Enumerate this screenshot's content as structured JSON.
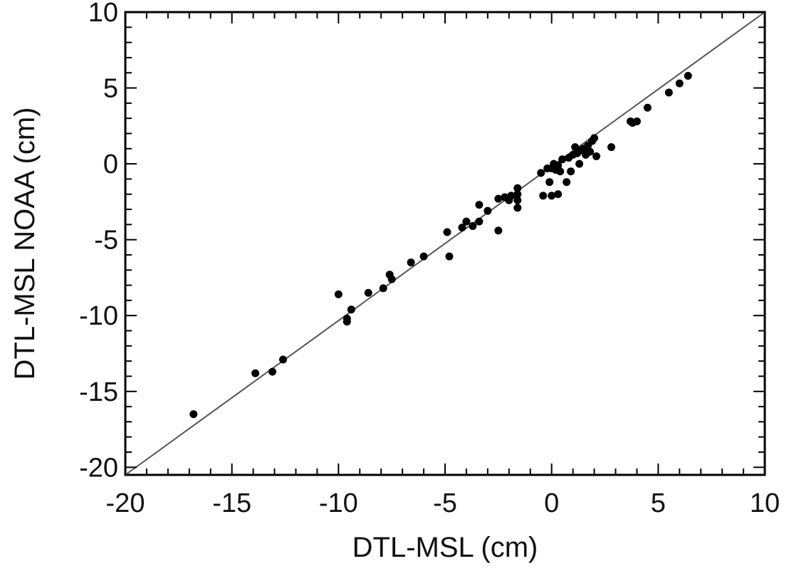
{
  "chart_data": {
    "type": "scatter",
    "title": "",
    "xlabel": "DTL-MSL (cm)",
    "ylabel": "DTL-MSL NOAA (cm)",
    "xlim": [
      -20,
      10
    ],
    "ylim": [
      -20.5,
      10
    ],
    "xticks": [
      -20,
      -15,
      -10,
      -5,
      0,
      5,
      10
    ],
    "yticks": [
      -20,
      -15,
      -10,
      -5,
      0,
      5,
      10
    ],
    "xtick_labels": [
      "-20",
      "-15",
      "-10",
      "-5",
      "0",
      "5",
      "10"
    ],
    "ytick_labels": [
      "-20",
      "-15",
      "-10",
      "-5",
      "0",
      "5",
      "10"
    ],
    "grid": false,
    "legend": "none",
    "reference_line": {
      "type": "identity",
      "from": [
        -20,
        -20.5
      ],
      "to": [
        10,
        10
      ],
      "color": "#555555"
    },
    "marker_color": "#000000",
    "points": [
      [
        -16.8,
        -16.5
      ],
      [
        -13.9,
        -13.8
      ],
      [
        -13.1,
        -13.7
      ],
      [
        -12.6,
        -12.9
      ],
      [
        -10.0,
        -8.6
      ],
      [
        -9.6,
        -10.2
      ],
      [
        -9.6,
        -10.4
      ],
      [
        -9.4,
        -9.6
      ],
      [
        -8.6,
        -8.5
      ],
      [
        -7.9,
        -8.2
      ],
      [
        -7.6,
        -7.3
      ],
      [
        -7.5,
        -7.6
      ],
      [
        -6.6,
        -6.5
      ],
      [
        -6.0,
        -6.1
      ],
      [
        -4.9,
        -4.5
      ],
      [
        -4.8,
        -6.1
      ],
      [
        -4.2,
        -4.2
      ],
      [
        -4.0,
        -3.8
      ],
      [
        -3.7,
        -4.1
      ],
      [
        -3.4,
        -2.7
      ],
      [
        -3.4,
        -3.8
      ],
      [
        -3.0,
        -3.1
      ],
      [
        -2.5,
        -2.3
      ],
      [
        -2.5,
        -4.4
      ],
      [
        -2.2,
        -2.2
      ],
      [
        -2.0,
        -2.4
      ],
      [
        -1.9,
        -2.1
      ],
      [
        -1.6,
        -1.6
      ],
      [
        -1.6,
        -2.0
      ],
      [
        -1.6,
        -2.4
      ],
      [
        -1.6,
        -2.9
      ],
      [
        -0.5,
        -0.6
      ],
      [
        -0.4,
        -2.1
      ],
      [
        -0.2,
        -0.3
      ],
      [
        -0.1,
        -1.2
      ],
      [
        0.0,
        -0.3
      ],
      [
        0.0,
        -2.1
      ],
      [
        0.1,
        0.0
      ],
      [
        0.2,
        -0.4
      ],
      [
        0.3,
        -0.1
      ],
      [
        0.3,
        -2.0
      ],
      [
        0.4,
        -0.5
      ],
      [
        0.5,
        0.3
      ],
      [
        0.7,
        -1.2
      ],
      [
        0.8,
        0.4
      ],
      [
        0.9,
        -0.5
      ],
      [
        1.0,
        0.6
      ],
      [
        1.1,
        1.1
      ],
      [
        1.2,
        0.7
      ],
      [
        1.3,
        0.0
      ],
      [
        1.4,
        0.9
      ],
      [
        1.5,
        1.0
      ],
      [
        1.6,
        0.6
      ],
      [
        1.7,
        1.2
      ],
      [
        1.8,
        0.8
      ],
      [
        1.9,
        1.5
      ],
      [
        2.0,
        1.7
      ],
      [
        2.1,
        0.5
      ],
      [
        2.8,
        1.1
      ],
      [
        3.7,
        2.8
      ],
      [
        3.8,
        2.7
      ],
      [
        4.0,
        2.8
      ],
      [
        4.5,
        3.7
      ],
      [
        5.5,
        4.7
      ],
      [
        6.0,
        5.3
      ],
      [
        6.4,
        5.8
      ]
    ]
  }
}
